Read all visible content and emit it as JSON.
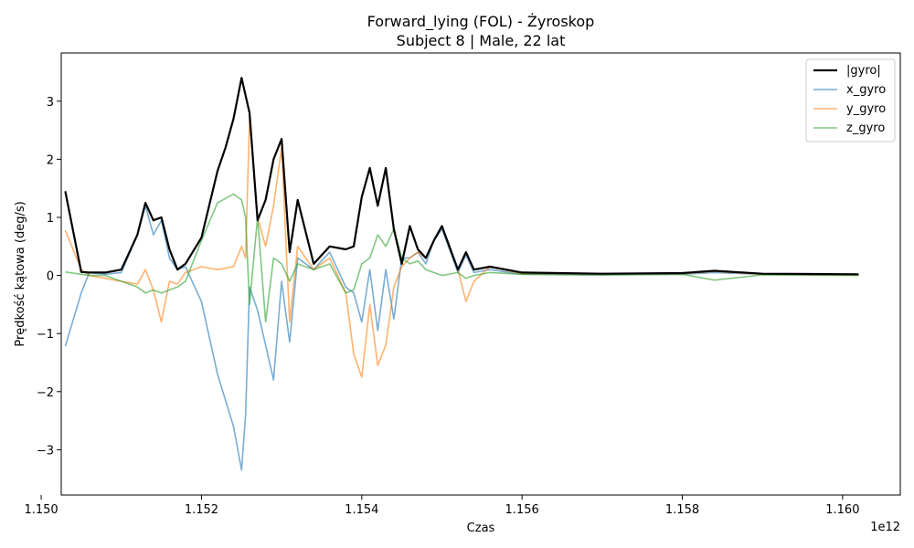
{
  "chart_data": {
    "type": "line",
    "title_line1": "Forward_lying (FOL) - Żyroskop",
    "title_line2": "Subject 8 | Male, 22 lat",
    "xlabel": "Czas",
    "ylabel": "Prędkość kątowa (deg/s)",
    "x_offset_label": "1e12",
    "xlim": [
      1.15025,
      1.16072
    ],
    "ylim": [
      -3.78,
      3.83
    ],
    "x_ticks": [
      1.15,
      1.152,
      1.154,
      1.156,
      1.158,
      1.16
    ],
    "x_tick_labels": [
      "1.150",
      "1.152",
      "1.154",
      "1.156",
      "1.158",
      "1.160"
    ],
    "y_ticks": [
      -3,
      -2,
      -1,
      0,
      1,
      2,
      3
    ],
    "y_tick_labels": [
      "−3",
      "−2",
      "−1",
      "0",
      "1",
      "2",
      "3"
    ],
    "legend_position": "top-right",
    "series": [
      {
        "name": "|gyro|",
        "color": "#000000",
        "x": [
          1.1503,
          1.1505,
          1.1506,
          1.1508,
          1.151,
          1.1512,
          1.1513,
          1.1514,
          1.1515,
          1.1516,
          1.1517,
          1.1518,
          1.152,
          1.1522,
          1.1523,
          1.1524,
          1.1525,
          1.1526,
          1.1527,
          1.1528,
          1.1529,
          1.153,
          1.1531,
          1.1532,
          1.1534,
          1.1536,
          1.1538,
          1.1539,
          1.154,
          1.1541,
          1.1542,
          1.1543,
          1.1544,
          1.1545,
          1.1546,
          1.1547,
          1.1548,
          1.1549,
          1.155,
          1.1552,
          1.1553,
          1.1554,
          1.1556,
          1.156,
          1.157,
          1.158,
          1.1584,
          1.159,
          1.1602
        ],
        "y": [
          1.45,
          0.06,
          0.05,
          0.05,
          0.1,
          0.7,
          1.25,
          0.95,
          1.0,
          0.45,
          0.1,
          0.2,
          0.65,
          1.8,
          2.2,
          2.7,
          3.4,
          2.8,
          0.95,
          1.3,
          2.0,
          2.35,
          0.4,
          1.3,
          0.2,
          0.5,
          0.45,
          0.5,
          1.35,
          1.85,
          1.2,
          1.85,
          0.8,
          0.2,
          0.85,
          0.45,
          0.3,
          0.6,
          0.85,
          0.1,
          0.4,
          0.1,
          0.15,
          0.05,
          0.03,
          0.04,
          0.08,
          0.03,
          0.02
        ]
      },
      {
        "name": "x_gyro",
        "color": "#1f77b4",
        "x": [
          1.1503,
          1.1505,
          1.1506,
          1.1508,
          1.151,
          1.1512,
          1.1513,
          1.1514,
          1.1515,
          1.1516,
          1.1517,
          1.1518,
          1.152,
          1.1522,
          1.1524,
          1.1525,
          1.15255,
          1.1526,
          1.1527,
          1.1528,
          1.1529,
          1.153,
          1.1531,
          1.1532,
          1.1534,
          1.1536,
          1.1538,
          1.1539,
          1.154,
          1.1541,
          1.1542,
          1.1543,
          1.1544,
          1.1545,
          1.1546,
          1.1547,
          1.1548,
          1.1549,
          1.155,
          1.1552,
          1.1553,
          1.1554,
          1.1556,
          1.156,
          1.157,
          1.158,
          1.1584,
          1.159,
          1.1602
        ],
        "y": [
          -1.22,
          -0.3,
          0.05,
          0.02,
          0.05,
          0.7,
          1.2,
          0.7,
          0.95,
          0.3,
          0.1,
          0.15,
          -0.45,
          -1.7,
          -2.6,
          -3.35,
          -2.4,
          -0.2,
          -0.6,
          -1.2,
          -1.8,
          -0.1,
          -1.15,
          0.3,
          0.1,
          0.4,
          -0.2,
          -0.3,
          -0.8,
          0.1,
          -0.95,
          0.1,
          -0.75,
          0.3,
          0.3,
          0.4,
          0.2,
          0.6,
          0.8,
          0.05,
          0.35,
          0.05,
          0.1,
          0.02,
          0.01,
          0.02,
          0.05,
          0.02,
          0.01
        ]
      },
      {
        "name": "y_gyro",
        "color": "#ff7f0e",
        "x": [
          1.1503,
          1.1505,
          1.1506,
          1.1508,
          1.151,
          1.1512,
          1.1513,
          1.1514,
          1.1515,
          1.1516,
          1.1517,
          1.1518,
          1.152,
          1.1522,
          1.1524,
          1.1525,
          1.15255,
          1.1526,
          1.1527,
          1.1528,
          1.1529,
          1.153,
          1.1531,
          1.1532,
          1.1534,
          1.1536,
          1.1538,
          1.1539,
          1.154,
          1.1541,
          1.1542,
          1.1543,
          1.1544,
          1.1545,
          1.1546,
          1.1547,
          1.1548,
          1.1549,
          1.155,
          1.1552,
          1.1553,
          1.1554,
          1.1556,
          1.156,
          1.157,
          1.158,
          1.1584,
          1.159,
          1.1602
        ],
        "y": [
          0.78,
          0.1,
          0.0,
          -0.05,
          -0.1,
          -0.15,
          0.1,
          -0.25,
          -0.8,
          -0.1,
          -0.15,
          0.05,
          0.15,
          0.1,
          0.15,
          0.5,
          0.3,
          2.7,
          1.0,
          0.5,
          1.2,
          2.2,
          -0.8,
          0.5,
          0.1,
          0.3,
          -0.3,
          -1.35,
          -1.75,
          -0.5,
          -1.55,
          -1.2,
          -0.2,
          0.15,
          0.3,
          0.4,
          0.3,
          0.6,
          0.85,
          0.1,
          -0.45,
          -0.1,
          0.15,
          0.03,
          0.02,
          0.03,
          0.07,
          0.02,
          0.01
        ]
      },
      {
        "name": "z_gyro",
        "color": "#2ca02c",
        "x": [
          1.1503,
          1.1505,
          1.1506,
          1.1508,
          1.151,
          1.1512,
          1.1513,
          1.1514,
          1.1515,
          1.1516,
          1.1517,
          1.1518,
          1.152,
          1.1522,
          1.1524,
          1.1525,
          1.15255,
          1.1526,
          1.1527,
          1.1528,
          1.1529,
          1.153,
          1.1531,
          1.1532,
          1.1534,
          1.1536,
          1.1538,
          1.1539,
          1.154,
          1.1541,
          1.1542,
          1.1543,
          1.1544,
          1.1545,
          1.1546,
          1.1547,
          1.1548,
          1.1549,
          1.155,
          1.1552,
          1.1553,
          1.1554,
          1.1556,
          1.156,
          1.157,
          1.158,
          1.1584,
          1.159,
          1.1602
        ],
        "y": [
          0.06,
          0.02,
          0.0,
          0.0,
          -0.1,
          -0.2,
          -0.3,
          -0.25,
          -0.3,
          -0.25,
          -0.2,
          -0.1,
          0.6,
          1.25,
          1.4,
          1.3,
          1.0,
          -0.5,
          1.0,
          -0.8,
          0.3,
          0.2,
          -0.1,
          0.2,
          0.1,
          0.2,
          -0.3,
          -0.25,
          0.2,
          0.3,
          0.7,
          0.5,
          0.8,
          0.3,
          0.2,
          0.25,
          0.1,
          0.05,
          0.0,
          0.05,
          -0.05,
          0.0,
          0.05,
          0.02,
          0.01,
          0.02,
          -0.08,
          0.01,
          0.0
        ]
      }
    ]
  }
}
